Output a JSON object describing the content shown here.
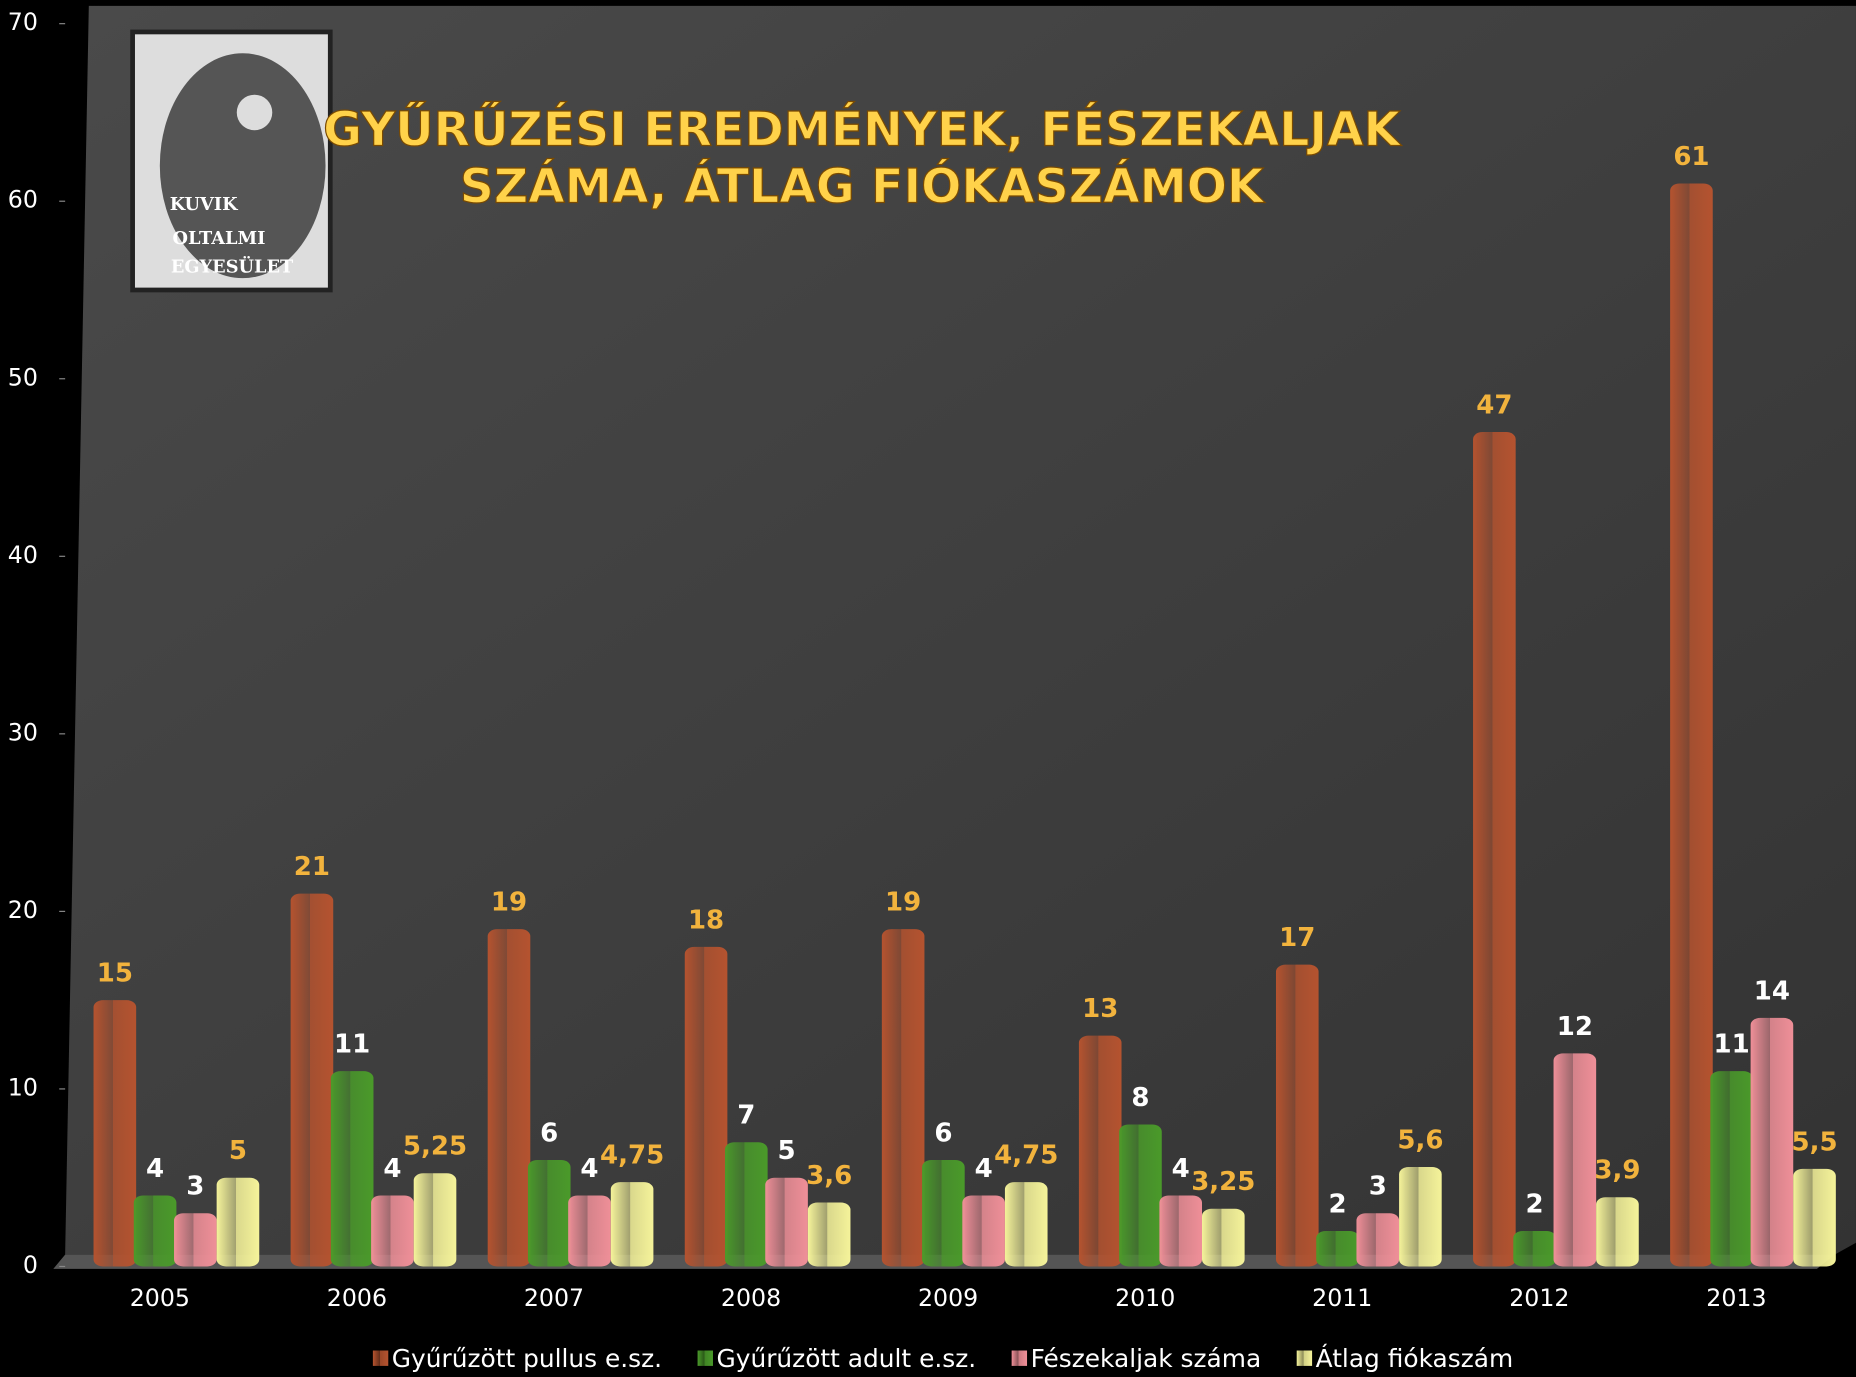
{
  "chart_data": {
    "type": "bar",
    "title": [
      "GYŰRŰZÉSI EREDMÉNYEK, FÉSZEKALJAK",
      "SZÁMA, ÁTLAG FIÓKASZÁMOK"
    ],
    "categories": [
      "2005",
      "2006",
      "2007",
      "2008",
      "2009",
      "2010",
      "2011",
      "2012",
      "2013"
    ],
    "series": [
      {
        "name": "Gyűrűzött pullus e.sz.",
        "color": "#b5532f",
        "values": [
          15,
          21,
          19,
          18,
          19,
          13,
          17,
          47,
          61
        ]
      },
      {
        "name": "Gyűrűzött adult e.sz.",
        "color": "#4a9a2a",
        "values": [
          4,
          11,
          6,
          7,
          6,
          8,
          2,
          2,
          11
        ]
      },
      {
        "name": "Fészekaljak száma",
        "color": "#ef8f98",
        "values": [
          3,
          4,
          4,
          5,
          4,
          4,
          3,
          12,
          14
        ]
      },
      {
        "name": "Átlag fiókaszám",
        "color": "#f5f39a",
        "values": [
          5,
          5.25,
          4.75,
          3.6,
          4.75,
          3.25,
          5.6,
          3.9,
          5.5
        ],
        "value_labels": [
          "5",
          "5,25",
          "4,75",
          "3,6",
          "4,75",
          "3,25",
          "5,6",
          "3,9",
          "5,5"
        ]
      }
    ],
    "ylim": [
      0,
      70
    ],
    "yticks": [
      0,
      10,
      20,
      30,
      40,
      50,
      60,
      70
    ],
    "legend": "bottom"
  },
  "logo": {
    "lines": [
      "KUVIK",
      "OLTALMI",
      "EGYESÜLET"
    ]
  }
}
